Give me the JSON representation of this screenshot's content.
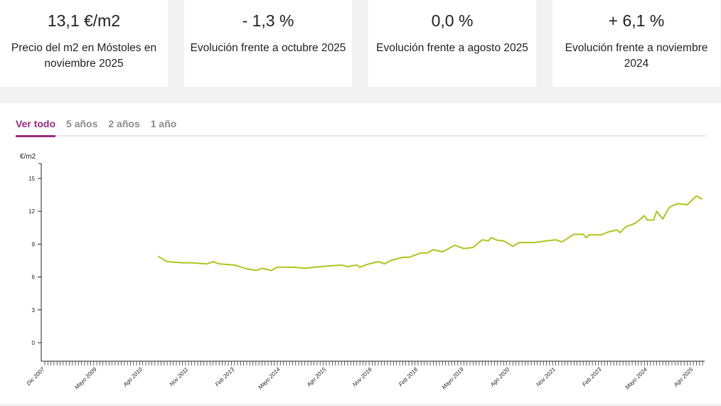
{
  "cards": [
    {
      "value": "13,1 €/m2",
      "label": "Precio del m2 en Móstoles en noviembre 2025"
    },
    {
      "value": "- 1,3 %",
      "label": "Evolución frente a octubre 2025"
    },
    {
      "value": "0,0 %",
      "label": "Evolución frente a agosto 2025"
    },
    {
      "value": "+ 6,1 %",
      "label": "Evolución frente a noviembre 2024"
    }
  ],
  "tabs": [
    {
      "label": "Ver todo",
      "active": true
    },
    {
      "label": "5 años"
    },
    {
      "label": "2 años"
    },
    {
      "label": "1 año"
    }
  ],
  "colors": {
    "line": "#a8c81e",
    "accent": "#9b2a7f"
  },
  "chart_data": {
    "type": "line",
    "ylabel": "€/m2",
    "ylim": [
      -2,
      17
    ],
    "yticks": [
      0,
      3,
      6,
      9,
      12,
      15
    ],
    "xlim": [
      "2007-12",
      "2025-11"
    ],
    "xtick_labels": [
      {
        "date": "2007-12",
        "label": "Dic 2007"
      },
      {
        "date": "2009-05",
        "label": "Mayo 2009"
      },
      {
        "date": "2010-08",
        "label": "Ago 2010"
      },
      {
        "date": "2011-11",
        "label": "Nov 2011"
      },
      {
        "date": "2013-02",
        "label": "Feb 2013"
      },
      {
        "date": "2014-05",
        "label": "Mayo 2014"
      },
      {
        "date": "2015-08",
        "label": "Ago 2015"
      },
      {
        "date": "2016-11",
        "label": "Nov 2016"
      },
      {
        "date": "2018-02",
        "label": "Feb 2018"
      },
      {
        "date": "2019-05",
        "label": "Mayo 2019"
      },
      {
        "date": "2020-08",
        "label": "Ago 2020"
      },
      {
        "date": "2021-11",
        "label": "Nov 2021"
      },
      {
        "date": "2023-02",
        "label": "Feb 2023"
      },
      {
        "date": "2024-05",
        "label": "Mayo 2024"
      },
      {
        "date": "2025-08",
        "label": "Ago 2025"
      }
    ],
    "grid": false,
    "series": [
      {
        "points": [
          [
            "2011-01",
            7.9
          ],
          [
            "2011-04",
            7.4
          ],
          [
            "2011-09",
            7.3
          ],
          [
            "2011-12",
            7.3
          ],
          [
            "2012-05",
            7.2
          ],
          [
            "2012-07",
            7.4
          ],
          [
            "2012-09",
            7.2
          ],
          [
            "2013-02",
            7.1
          ],
          [
            "2013-06",
            6.75
          ],
          [
            "2013-09",
            6.6
          ],
          [
            "2013-11",
            6.8
          ],
          [
            "2014-02",
            6.6
          ],
          [
            "2014-04",
            6.9
          ],
          [
            "2014-09",
            6.9
          ],
          [
            "2015-01",
            6.8
          ],
          [
            "2015-06",
            6.95
          ],
          [
            "2016-01",
            7.1
          ],
          [
            "2016-03",
            6.95
          ],
          [
            "2016-06",
            7.1
          ],
          [
            "2016-07",
            6.9
          ],
          [
            "2016-10",
            7.2
          ],
          [
            "2017-01",
            7.4
          ],
          [
            "2017-03",
            7.2
          ],
          [
            "2017-05",
            7.5
          ],
          [
            "2017-09",
            7.8
          ],
          [
            "2017-11",
            7.8
          ],
          [
            "2018-03",
            8.2
          ],
          [
            "2018-05",
            8.2
          ],
          [
            "2018-07",
            8.5
          ],
          [
            "2018-10",
            8.3
          ],
          [
            "2018-12",
            8.6
          ],
          [
            "2019-02",
            8.9
          ],
          [
            "2019-05",
            8.6
          ],
          [
            "2019-08",
            8.7
          ],
          [
            "2019-11",
            9.4
          ],
          [
            "2020-01",
            9.3
          ],
          [
            "2020-02",
            9.6
          ],
          [
            "2020-04",
            9.35
          ],
          [
            "2020-06",
            9.3
          ],
          [
            "2020-09",
            8.8
          ],
          [
            "2020-11",
            9.15
          ],
          [
            "2021-04",
            9.15
          ],
          [
            "2021-08",
            9.3
          ],
          [
            "2021-11",
            9.4
          ],
          [
            "2022-01",
            9.2
          ],
          [
            "2022-05",
            9.9
          ],
          [
            "2022-08",
            9.9
          ],
          [
            "2022-09",
            9.6
          ],
          [
            "2022-10",
            9.85
          ],
          [
            "2023-02",
            9.85
          ],
          [
            "2023-04",
            10.1
          ],
          [
            "2023-07",
            10.3
          ],
          [
            "2023-08",
            10.05
          ],
          [
            "2023-10",
            10.6
          ],
          [
            "2024-01",
            10.9
          ],
          [
            "2024-04",
            11.6
          ],
          [
            "2024-05",
            11.2
          ],
          [
            "2024-07",
            11.2
          ],
          [
            "2024-08",
            12.0
          ],
          [
            "2024-10",
            11.3
          ],
          [
            "2024-12",
            12.3
          ],
          [
            "2025-01",
            12.5
          ],
          [
            "2025-03",
            12.7
          ],
          [
            "2025-06",
            12.6
          ],
          [
            "2025-09",
            13.4
          ],
          [
            "2025-11",
            13.1
          ]
        ]
      }
    ]
  }
}
